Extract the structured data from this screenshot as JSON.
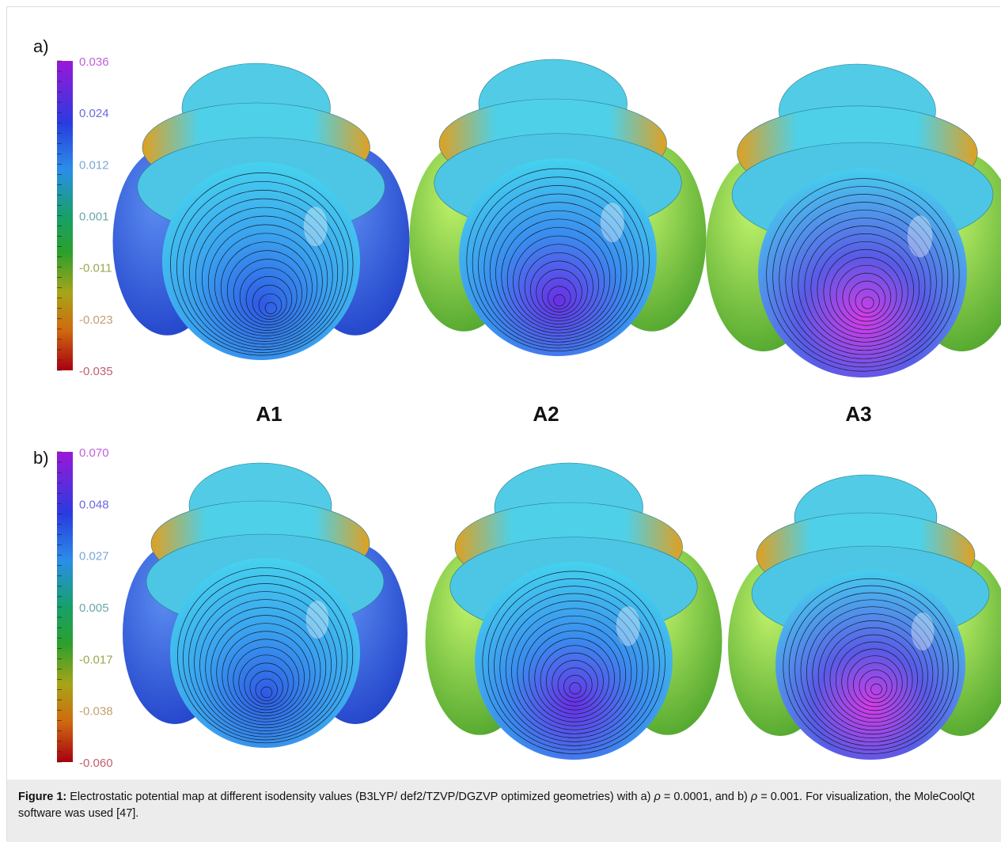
{
  "figure": {
    "panels": [
      {
        "label": "a)",
        "scale_ticks": [
          "0.036",
          "0.024",
          "0.012",
          "0.001",
          "-0.011",
          "-0.023",
          "-0.035"
        ]
      },
      {
        "label": "b)",
        "scale_ticks": [
          "0.070",
          "0.048",
          "0.027",
          "0.005",
          "-0.017",
          "-0.038",
          "-0.060"
        ]
      }
    ],
    "molecule_labels": [
      "A1",
      "A2",
      "A3"
    ]
  },
  "caption": {
    "label": "Figure 1:",
    "text_1": " Electrostatic potential map at different isodensity values (B3LYP/ def2/TZVP/DGZVP optimized geometries) with a) ",
    "rho_1": "ρ",
    "text_2": " = 0.0001, and b) ",
    "rho_2": "ρ",
    "text_3": " = 0.001. For visualization, the MoleCoolQt software was used [47]."
  }
}
